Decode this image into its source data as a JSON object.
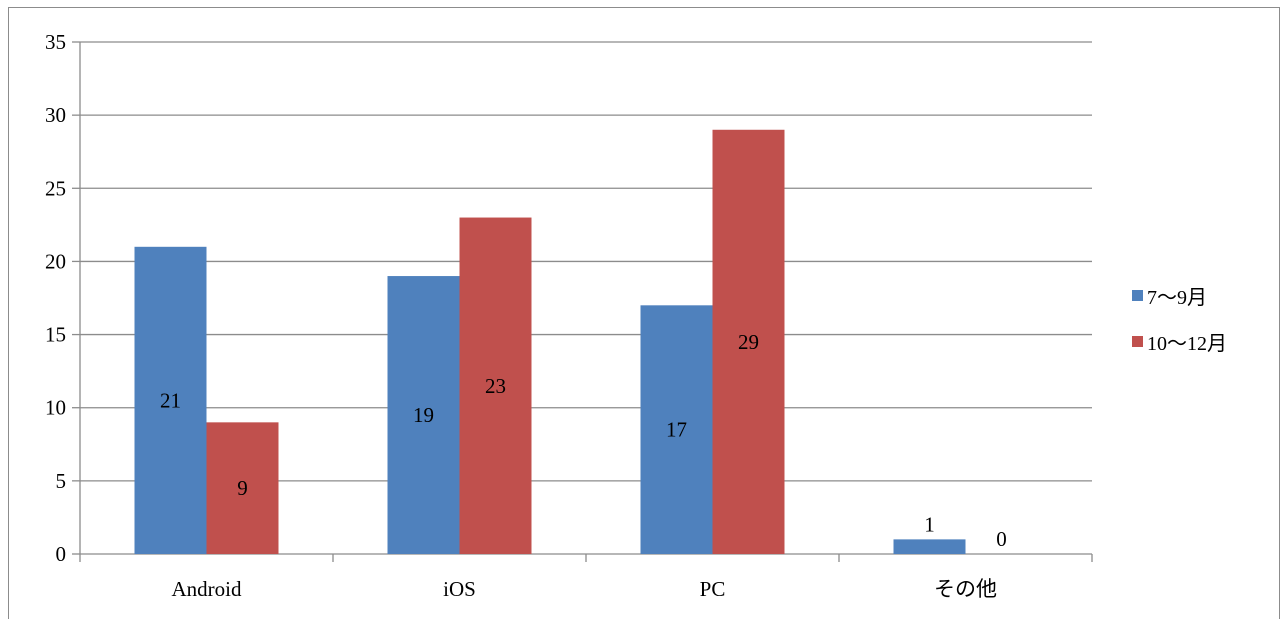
{
  "chart_data": {
    "type": "bar",
    "categories": [
      "Android",
      "iOS",
      "PC",
      "その他"
    ],
    "series": [
      {
        "name": "7〜9月",
        "values": [
          21,
          19,
          17,
          1
        ],
        "color": "#4f81bd"
      },
      {
        "name": "10〜12月",
        "values": [
          9,
          23,
          29,
          0
        ],
        "color": "#c0504d"
      }
    ],
    "data_labels": [
      [
        "21",
        "19",
        "17",
        "1"
      ],
      [
        "9",
        "23",
        "29",
        "0"
      ]
    ],
    "yticks": [
      "0",
      "5",
      "10",
      "15",
      "20",
      "25",
      "30",
      "35"
    ],
    "ylim": [
      0,
      35
    ],
    "grid": true,
    "legend_position": "right"
  }
}
